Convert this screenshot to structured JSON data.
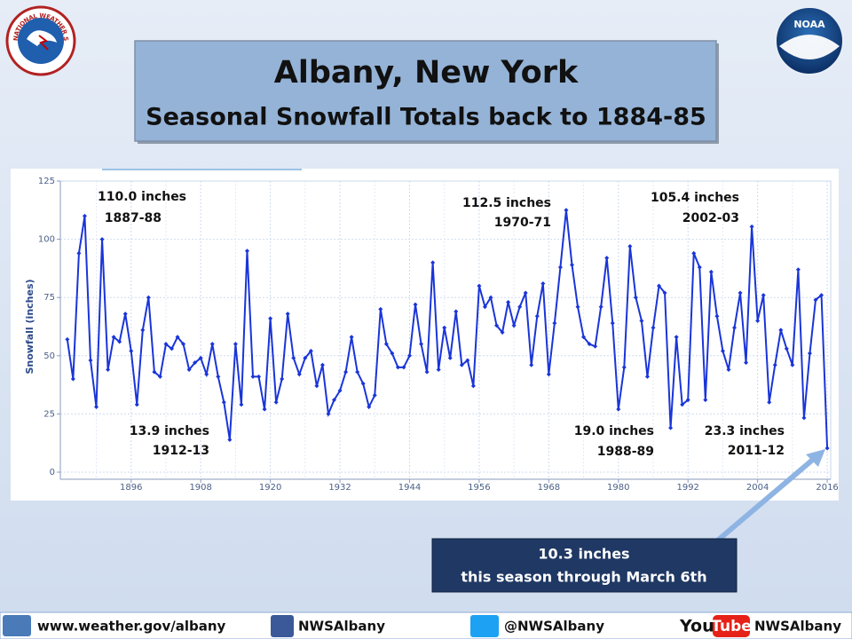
{
  "header": {
    "title": "Albany, New York",
    "subtitle": "Seasonal Snowfall Totals back to 1884-85",
    "nws_logo": "NATIONAL WEATHER SERVICE",
    "noaa_logo": "NOAA"
  },
  "chart_data": {
    "type": "line",
    "y_label": "Snowfall (inches)",
    "color": "#1a35d8",
    "grid": true,
    "x": [
      1885,
      1886,
      1887,
      1888,
      1889,
      1890,
      1891,
      1892,
      1893,
      1894,
      1895,
      1896,
      1897,
      1898,
      1899,
      1900,
      1901,
      1902,
      1903,
      1904,
      1905,
      1906,
      1907,
      1908,
      1909,
      1910,
      1911,
      1912,
      1913,
      1914,
      1915,
      1916,
      1917,
      1918,
      1919,
      1920,
      1921,
      1922,
      1923,
      1924,
      1925,
      1926,
      1927,
      1928,
      1929,
      1930,
      1931,
      1932,
      1933,
      1934,
      1935,
      1936,
      1937,
      1938,
      1939,
      1940,
      1941,
      1942,
      1943,
      1944,
      1945,
      1946,
      1947,
      1948,
      1949,
      1950,
      1951,
      1952,
      1953,
      1954,
      1955,
      1956,
      1957,
      1958,
      1959,
      1960,
      1961,
      1962,
      1963,
      1964,
      1965,
      1966,
      1967,
      1968,
      1969,
      1970,
      1971,
      1972,
      1973,
      1974,
      1975,
      1976,
      1977,
      1978,
      1979,
      1980,
      1981,
      1982,
      1983,
      1984,
      1985,
      1986,
      1987,
      1988,
      1989,
      1990,
      1991,
      1992,
      1993,
      1994,
      1995,
      1996,
      1997,
      1998,
      1999,
      2000,
      2001,
      2002,
      2003,
      2004,
      2005,
      2006,
      2007,
      2008,
      2009,
      2010,
      2011,
      2012,
      2013,
      2014,
      2015,
      2016
    ],
    "values": [
      57,
      40,
      94,
      110.0,
      48,
      28,
      100,
      44,
      58,
      56,
      68,
      52,
      29,
      61,
      75,
      43,
      41,
      55,
      53,
      58,
      55,
      44,
      47,
      49,
      42,
      55,
      41,
      30,
      13.9,
      55,
      29,
      95,
      41,
      41,
      27,
      66,
      30,
      40,
      68,
      49,
      42,
      49,
      52,
      37,
      46,
      25,
      31,
      35,
      43,
      58,
      43,
      38,
      28,
      33,
      70,
      55,
      51,
      45,
      45,
      50,
      72,
      55,
      43,
      90,
      44,
      62,
      49,
      69,
      46,
      48,
      37,
      80,
      71,
      75,
      63,
      60,
      73,
      63,
      71,
      77,
      46,
      67,
      81,
      42,
      64,
      88,
      112.5,
      89,
      71,
      58,
      55,
      54,
      71,
      92,
      64,
      27,
      45,
      97,
      75,
      65,
      41,
      62,
      80,
      77,
      19.0,
      58,
      29,
      31,
      94,
      88,
      31,
      86,
      67,
      52,
      44,
      62,
      77,
      47,
      105.4,
      65,
      76,
      30,
      46,
      61,
      53,
      46,
      87,
      23.3,
      51,
      74,
      76,
      10.3
    ],
    "xlim": [
      1883.8,
      2016.6
    ],
    "xticks": [
      1896,
      1908,
      1920,
      1932,
      1944,
      1956,
      1968,
      1980,
      1992,
      2004,
      2016
    ],
    "ylim": [
      0,
      125
    ],
    "yticks": [
      0,
      25,
      50,
      75,
      100,
      125
    ],
    "annotations": [
      {
        "lines": [
          "110.0 inches",
          "1887-88"
        ]
      },
      {
        "lines": [
          "13.9 inches",
          "1912-13"
        ]
      },
      {
        "lines": [
          "112.5 inches",
          "1970-71"
        ]
      },
      {
        "lines": [
          "105.4 inches",
          "2002-03"
        ]
      },
      {
        "lines": [
          "19.0 inches",
          "1988-89"
        ]
      },
      {
        "lines": [
          "23.3 inches",
          "2011-12"
        ]
      }
    ],
    "callout": [
      "10.3 inches",
      "this season through March 6th"
    ]
  },
  "footer": {
    "website": "www.weather.gov/albany",
    "facebook": "NWSAlbany",
    "twitter": "@NWSAlbany",
    "youtube_you": "You",
    "youtube_tube": "Tube",
    "youtube": "NWSAlbany"
  }
}
